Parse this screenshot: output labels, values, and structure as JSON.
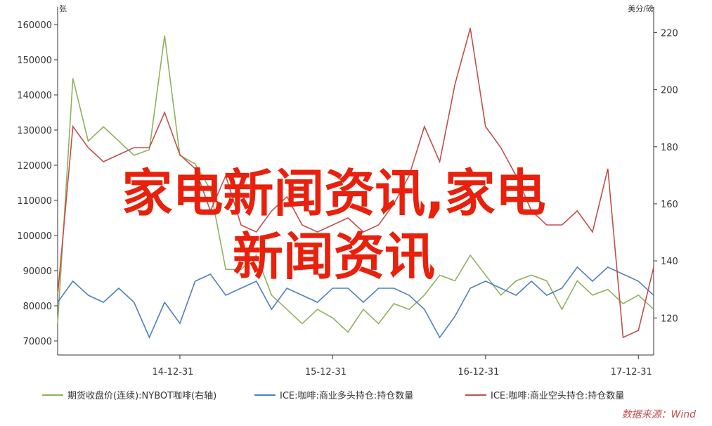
{
  "chart_data": {
    "type": "line",
    "y_label": "张",
    "y2_label": "美分/磅",
    "watermark": "家电新闻资讯,家电新闻资讯",
    "source": "数据来源：Wind",
    "x": [
      14.2,
      14.3,
      14.4,
      14.5,
      14.6,
      14.7,
      14.8,
      14.9,
      15.0,
      15.1,
      15.2,
      15.3,
      15.4,
      15.5,
      15.6,
      15.7,
      15.8,
      15.9,
      16.0,
      16.1,
      16.2,
      16.3,
      16.4,
      16.5,
      16.6,
      16.7,
      16.8,
      16.9,
      17.0,
      17.1,
      17.2,
      17.3,
      17.4,
      17.5,
      17.6,
      17.7,
      17.8,
      17.9,
      18.0,
      18.1
    ],
    "xlim": [
      14.2,
      18.1
    ],
    "xticks": [
      {
        "value": 15,
        "label": "14-12-31"
      },
      {
        "value": 16,
        "label": "15-12-31"
      },
      {
        "value": 17,
        "label": "16-12-31"
      },
      {
        "value": 18,
        "label": "17-12-31"
      }
    ],
    "ylim": [
      66000,
      165000
    ],
    "yticks": [
      70000,
      80000,
      90000,
      100000,
      110000,
      120000,
      130000,
      140000,
      150000,
      160000
    ],
    "y2lim": [
      107,
      229
    ],
    "y2ticks": [
      120,
      140,
      160,
      180,
      200,
      220
    ],
    "series": [
      {
        "name": "期货收盘价(连续):NYBOT咖啡(右轴)",
        "color": "#8fb15c",
        "axis": "y2",
        "values": [
          118,
          204,
          182,
          187,
          182,
          177,
          179,
          219,
          177,
          174,
          165,
          137,
          137,
          142,
          128,
          123,
          118,
          123,
          120,
          115,
          123,
          118,
          125,
          123,
          128,
          135,
          133,
          142,
          135,
          128,
          133,
          135,
          133,
          123,
          133,
          128,
          130,
          125,
          128,
          123
        ]
      },
      {
        "name": "ICE:咖啡:商业多头持仓:持仓数量",
        "color": "#4f81bd",
        "values": [
          81000,
          87000,
          83000,
          81000,
          85000,
          81000,
          71000,
          81000,
          75000,
          87000,
          89000,
          83000,
          85000,
          87000,
          79000,
          85000,
          83000,
          81000,
          85000,
          85000,
          81000,
          85000,
          85000,
          83000,
          79000,
          71000,
          77000,
          85000,
          87000,
          85000,
          83000,
          87000,
          83000,
          85000,
          91000,
          87000,
          91000,
          89000,
          87000,
          83000
        ]
      },
      {
        "name": "ICE:咖啡:商业空头持仓:持仓数量",
        "color": "#c0504d",
        "values": [
          83000,
          131000,
          125000,
          121000,
          123000,
          125000,
          125000,
          135000,
          123000,
          119000,
          107000,
          117000,
          103000,
          101000,
          107000,
          111000,
          103000,
          101000,
          103000,
          105000,
          101000,
          103000,
          109000,
          117000,
          131000,
          121000,
          143000,
          159000,
          131000,
          125000,
          117000,
          107000,
          103000,
          103000,
          107000,
          101000,
          119000,
          71000,
          73000,
          91000
        ]
      }
    ]
  }
}
